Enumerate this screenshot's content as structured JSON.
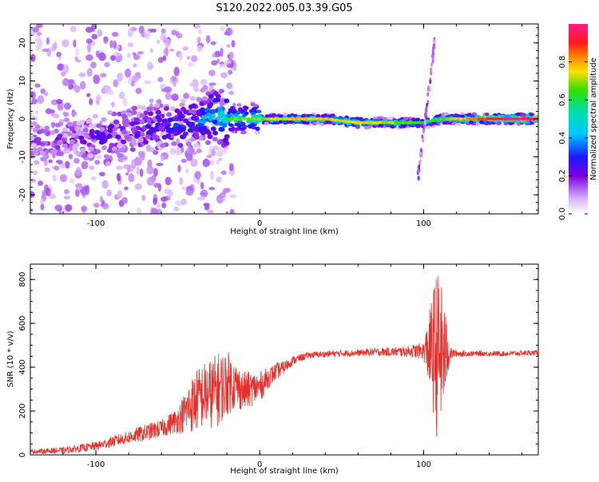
{
  "title": "S120.2022.005.03.39.G05",
  "colors": {
    "snr_line": "#e8302b",
    "axis": "#000000",
    "plot_bg": "#ffffff"
  },
  "colorbar": {
    "label": "Normalized spectral amplitude",
    "ticks": [
      "0.0",
      "0.2",
      "0.4",
      "0.6",
      "0.8"
    ],
    "tick_values": [
      0.0,
      0.2,
      0.4,
      0.6,
      0.8
    ],
    "range": [
      0,
      1
    ],
    "colormap": "rainbow (white-purple-blue-cyan-green-yellow-orange-red-magenta)"
  },
  "chart_data": [
    {
      "type": "heatmap",
      "xlabel": "Height of straight line (km)",
      "ylabel": "Frequency (Hz)",
      "xlim": [
        -140,
        170
      ],
      "ylim": [
        -25,
        25
      ],
      "xticks": [
        -100,
        0,
        100
      ],
      "xtick_labels": [
        "-100",
        "0",
        "100"
      ],
      "yticks": [
        -20,
        -10,
        0,
        10,
        20
      ],
      "ytick_labels": [
        "-20",
        "-10",
        "0",
        "10",
        "20"
      ],
      "ridge_profile": {
        "x": [
          -140,
          -120,
          -100,
          -80,
          -60,
          -40,
          -30,
          -20,
          0,
          20,
          40,
          60,
          80,
          90,
          100,
          110,
          130,
          170
        ],
        "freq": [
          -6,
          -6,
          -5,
          -3,
          -2,
          -1,
          1,
          0,
          0,
          0,
          0,
          -1,
          -1,
          -1,
          -1,
          0,
          0,
          0
        ],
        "amplitude": [
          0.1,
          0.15,
          0.2,
          0.2,
          0.25,
          0.3,
          0.4,
          0.5,
          0.55,
          0.6,
          0.6,
          0.6,
          0.55,
          0.5,
          0.45,
          0.5,
          0.7,
          0.95
        ]
      }
    },
    {
      "type": "line",
      "xlabel": "Height of straight line (km)",
      "ylabel": "SNR (10 * v/v)",
      "xlim": [
        -140,
        170
      ],
      "ylim": [
        0,
        870
      ],
      "xticks": [
        -100,
        0,
        100
      ],
      "xtick_labels": [
        "-100",
        "0",
        "100"
      ],
      "yticks": [
        0,
        200,
        400,
        600,
        800
      ],
      "ytick_labels": [
        "0",
        "200",
        "400",
        "600",
        "800"
      ],
      "series": [
        {
          "x": [
            -140,
            -120,
            -100,
            -80,
            -70,
            -60,
            -50,
            -45,
            -40,
            -35,
            -30,
            -25,
            -20,
            -15,
            -10,
            -5,
            0,
            5,
            10,
            15,
            20,
            30,
            40,
            50,
            60,
            70,
            80,
            90,
            100,
            104,
            108,
            112,
            116,
            120,
            130,
            140,
            150,
            160,
            170
          ],
          "y": [
            15,
            20,
            40,
            80,
            100,
            120,
            160,
            200,
            240,
            270,
            280,
            300,
            330,
            320,
            290,
            300,
            310,
            350,
            380,
            400,
            430,
            455,
            460,
            463,
            465,
            470,
            470,
            472,
            475,
            480,
            470,
            460,
            462,
            462,
            462,
            462,
            462,
            464,
            466
          ],
          "noise": [
            10,
            15,
            20,
            30,
            40,
            40,
            60,
            100,
            140,
            150,
            160,
            170,
            150,
            110,
            90,
            80,
            70,
            50,
            40,
            30,
            20,
            15,
            15,
            15,
            15,
            18,
            20,
            25,
            40,
            200,
            390,
            280,
            30,
            15,
            12,
            12,
            12,
            12,
            12
          ]
        }
      ]
    }
  ]
}
